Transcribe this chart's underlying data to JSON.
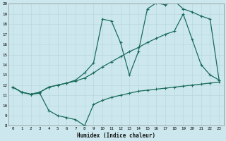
{
  "xlabel": "Humidex (Indice chaleur)",
  "xlim_min": 0,
  "xlim_max": 23,
  "ylim_min": 8,
  "ylim_max": 20,
  "yticks": [
    8,
    9,
    10,
    11,
    12,
    13,
    14,
    15,
    16,
    17,
    18,
    19,
    20
  ],
  "xticks": [
    0,
    1,
    2,
    3,
    4,
    5,
    6,
    7,
    8,
    9,
    10,
    11,
    12,
    13,
    14,
    15,
    16,
    17,
    18,
    19,
    20,
    21,
    22,
    23
  ],
  "line_color": "#1a6b5a",
  "bg_color": "#cce8ee",
  "grid_color": "#b8d8de",
  "line1_x": [
    0,
    1,
    2,
    3,
    4,
    5,
    6,
    7,
    8,
    9,
    10,
    11,
    12,
    13,
    14,
    15,
    16,
    17,
    18,
    19,
    20,
    21,
    22,
    23
  ],
  "line1_y": [
    11.8,
    11.3,
    11.1,
    11.2,
    9.5,
    9.0,
    8.8,
    8.6,
    8.0,
    10.1,
    10.5,
    10.8,
    11.0,
    11.2,
    11.4,
    11.5,
    11.6,
    11.7,
    11.8,
    11.9,
    12.0,
    12.1,
    12.2,
    12.3
  ],
  "line2_x": [
    0,
    1,
    2,
    3,
    4,
    5,
    6,
    7,
    8,
    9,
    10,
    11,
    12,
    13,
    14,
    15,
    16,
    17,
    18,
    19,
    20,
    21,
    22,
    23
  ],
  "line2_y": [
    11.8,
    11.3,
    11.1,
    11.3,
    11.8,
    12.0,
    12.2,
    12.4,
    12.7,
    13.2,
    13.8,
    14.3,
    14.8,
    15.3,
    15.7,
    16.2,
    16.6,
    17.0,
    17.3,
    19.0,
    16.5,
    14.0,
    13.0,
    12.5
  ],
  "line3_x": [
    0,
    1,
    2,
    3,
    4,
    5,
    6,
    7,
    8,
    9,
    10,
    11,
    12,
    13,
    14,
    15,
    16,
    17,
    18,
    19,
    20,
    21,
    22,
    23
  ],
  "line3_y": [
    11.8,
    11.3,
    11.1,
    11.3,
    11.8,
    12.0,
    12.2,
    12.5,
    13.2,
    14.2,
    18.5,
    18.3,
    16.2,
    13.0,
    15.3,
    19.5,
    20.1,
    19.9,
    20.3,
    19.5,
    19.2,
    18.8,
    18.5,
    12.5
  ]
}
